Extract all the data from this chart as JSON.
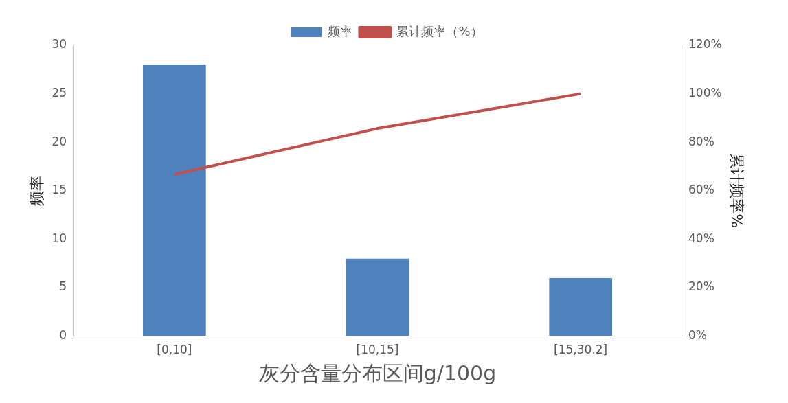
{
  "chart_data": {
    "type": "bar",
    "categories": [
      "[0,10]",
      "[10,15]",
      "[15,30.2]"
    ],
    "series": [
      {
        "name": "频率",
        "color": "#4f81bd",
        "values": [
          28,
          8,
          6
        ]
      },
      {
        "name": "累计频率（%）",
        "type": "line",
        "axis": "y2",
        "color": "#c0504d",
        "values": [
          66.7,
          85.7,
          100
        ]
      }
    ],
    "xlabel": "灰分含量分布区间g/100g",
    "ylabel": "频率",
    "y2label": "累计频率%",
    "ylim": [
      0,
      30
    ],
    "yticks": [
      0,
      5,
      10,
      15,
      20,
      25,
      30
    ],
    "y2lim": [
      0,
      120
    ],
    "y2ticks": [
      {
        "value": 0,
        "label": "0%"
      },
      {
        "value": 20,
        "label": "20%"
      },
      {
        "value": 40,
        "label": "40%"
      },
      {
        "value": 60,
        "label": "60%"
      },
      {
        "value": 80,
        "label": "80%"
      },
      {
        "value": 100,
        "label": "100%"
      },
      {
        "value": 120,
        "label": "120%"
      }
    ],
    "grid": false,
    "legend": "top",
    "marker": "none"
  }
}
